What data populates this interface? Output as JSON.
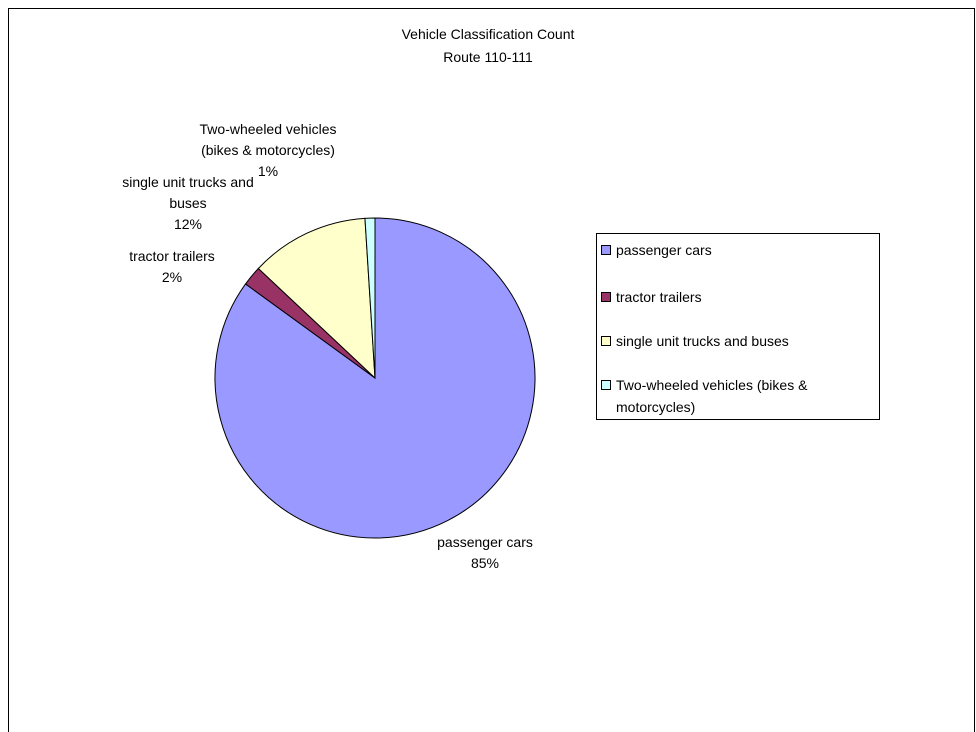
{
  "chart_data": {
    "type": "pie",
    "title": "Vehicle Classification Count",
    "subtitle": "Route 110-111",
    "categories": [
      "passenger cars",
      "tractor trailers",
      "single unit trucks and buses",
      "Two-wheeled vehicles (bikes & motorcycles)"
    ],
    "values": [
      85,
      2,
      12,
      1
    ],
    "value_labels": [
      "85%",
      "2%",
      "12%",
      "1%"
    ],
    "colors": [
      "#9999ff",
      "#993366",
      "#ffffcc",
      "#ccffff"
    ],
    "legend": "right"
  }
}
